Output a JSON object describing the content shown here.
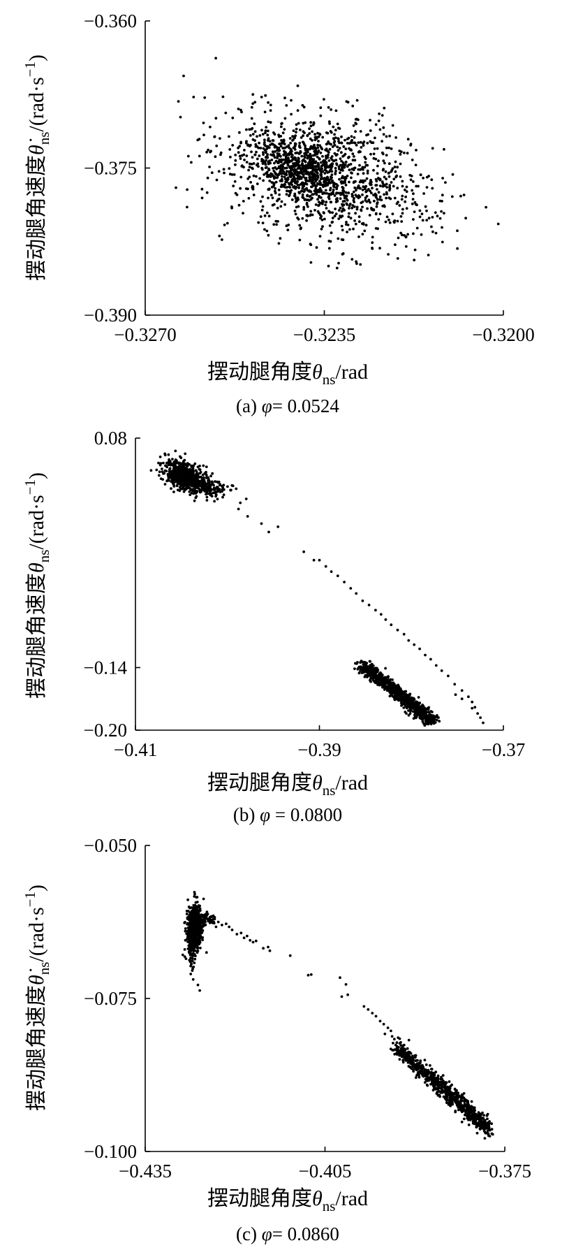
{
  "chart_data": [
    {
      "type": "scatter",
      "panel_label": "(a)",
      "parameter": "φ",
      "parameter_value": "0.0524",
      "caption_parts": [
        "(a) ",
        "φ",
        "= 0.0524"
      ],
      "xlabel_parts": [
        "摆动腿角度",
        "θ",
        "ns",
        "/rad"
      ],
      "ylabel_parts": [
        "摆动腿角速度",
        "θ̇",
        "ns",
        "/(rad·s",
        "−1",
        ")"
      ],
      "xlim": [
        -0.327,
        -0.32
      ],
      "ylim": [
        -0.39,
        -0.36
      ],
      "x_ticks": [
        -0.327,
        -0.3235,
        -0.32
      ],
      "y_ticks": [
        -0.39,
        -0.375,
        -0.36
      ],
      "x_tick_labels": [
        "−0.3270",
        "−0.3235",
        "−0.3200"
      ],
      "y_tick_labels": [
        "−0.390",
        "−0.375",
        "−0.360"
      ],
      "grid": false,
      "legend": "none",
      "marker_color": "#000000",
      "clusters": [
        {
          "center": [
            -0.32345,
            -0.3757
          ],
          "spread": [
            0.00105,
            0.0033
          ],
          "corr": -0.35,
          "n": 1200
        },
        {
          "center": [
            -0.32395,
            -0.3753
          ],
          "spread": [
            0.00045,
            0.0015
          ],
          "corr": -0.4,
          "n": 450
        }
      ],
      "x_clip": [
        -0.3265,
        -0.32
      ],
      "y_clip": [
        -0.3852,
        -0.3639
      ],
      "points": [
        [
          -0.32625,
          -0.3656
        ],
        [
          -0.32635,
          -0.3682
        ],
        [
          -0.3264,
          -0.377
        ],
        [
          -0.32618,
          -0.3772
        ],
        [
          -0.32562,
          -0.3638
        ],
        [
          -0.32586,
          -0.3704
        ],
        [
          -0.32465,
          -0.3676
        ],
        [
          -0.3201,
          -0.3807
        ],
        [
          -0.32034,
          -0.379
        ],
        [
          -0.3209,
          -0.3814
        ],
        [
          -0.32138,
          -0.3815
        ],
        [
          -0.3219,
          -0.383
        ],
        [
          -0.32225,
          -0.3838
        ],
        [
          -0.32322,
          -0.3847
        ],
        [
          -0.32325,
          -0.3852
        ],
        [
          -0.32365,
          -0.3831
        ],
        [
          -0.32545,
          -0.3808
        ],
        [
          -0.3247,
          -0.3806
        ]
      ]
    },
    {
      "type": "scatter",
      "panel_label": "(b)",
      "parameter": "φ",
      "parameter_value": "0.0800",
      "caption_parts": [
        "(b) ",
        "φ",
        " = 0.0800"
      ],
      "xlabel_parts": [
        "摆动腿角度",
        "θ",
        "ns",
        "/rad"
      ],
      "ylabel_parts": [
        "摆动腿角速度",
        "θ",
        "ns",
        "/(rad·s",
        "−1",
        ")"
      ],
      "xlim": [
        -0.41,
        -0.37
      ],
      "ylim": [
        -0.2,
        0.08
      ],
      "x_ticks": [
        -0.41,
        -0.39,
        -0.37
      ],
      "y_ticks": [
        -0.2,
        -0.14,
        0.08
      ],
      "x_tick_labels": [
        "−0.41",
        "−0.39",
        "−0.37"
      ],
      "y_tick_labels": [
        "−0.20",
        "−0.14",
        "0.08"
      ],
      "grid": false,
      "legend": "none",
      "marker_color": "#000000",
      "clusters": [
        {
          "center": [
            -0.4045,
            0.043
          ],
          "spread": [
            0.0011,
            0.0075
          ],
          "corr": -0.45,
          "n": 650
        },
        {
          "center": [
            -0.4018,
            0.032
          ],
          "spread": [
            0.0012,
            0.0045
          ],
          "corr": -0.3,
          "n": 120
        },
        {
          "line": [
            [
              -0.3855,
              -0.136
            ],
            [
              -0.3777,
              -0.192
            ]
          ],
          "spread": [
            0.00045,
            0.0022
          ],
          "n": 900
        }
      ],
      "points": [
        [
          -0.4083,
          0.049
        ],
        [
          -0.4073,
          0.062
        ],
        [
          -0.4068,
          0.065
        ],
        [
          -0.3986,
          0.018
        ],
        [
          -0.3988,
          0.012
        ],
        [
          -0.3978,
          0.005
        ],
        [
          -0.3963,
          -0.002
        ],
        [
          -0.3955,
          -0.01
        ],
        [
          -0.3945,
          -0.005
        ],
        [
          -0.3917,
          -0.029
        ],
        [
          -0.3906,
          -0.037
        ],
        [
          -0.39,
          -0.037
        ],
        [
          -0.3893,
          -0.043
        ],
        [
          -0.3887,
          -0.048
        ],
        [
          -0.388,
          -0.052
        ],
        [
          -0.3873,
          -0.058
        ],
        [
          -0.3866,
          -0.064
        ],
        [
          -0.386,
          -0.069
        ],
        [
          -0.3853,
          -0.076
        ],
        [
          -0.3846,
          -0.08
        ],
        [
          -0.3839,
          -0.085
        ],
        [
          -0.3833,
          -0.089
        ],
        [
          -0.3828,
          -0.094
        ],
        [
          -0.3822,
          -0.099
        ],
        [
          -0.3815,
          -0.104
        ],
        [
          -0.3808,
          -0.108
        ],
        [
          -0.3803,
          -0.114
        ],
        [
          -0.3797,
          -0.118
        ],
        [
          -0.3791,
          -0.122
        ],
        [
          -0.3785,
          -0.128
        ],
        [
          -0.3779,
          -0.132
        ],
        [
          -0.3773,
          -0.138
        ],
        [
          -0.3767,
          -0.143
        ],
        [
          -0.376,
          -0.148
        ],
        [
          -0.3753,
          -0.156
        ],
        [
          -0.3745,
          -0.162
        ],
        [
          -0.3738,
          -0.168
        ],
        [
          -0.3734,
          -0.173
        ],
        [
          -0.3731,
          -0.178
        ],
        [
          -0.3728,
          -0.184
        ],
        [
          -0.3725,
          -0.188
        ],
        [
          -0.3722,
          -0.193
        ],
        [
          -0.3734,
          -0.179
        ],
        [
          -0.3745,
          -0.17
        ],
        [
          -0.3752,
          -0.166
        ]
      ]
    },
    {
      "type": "scatter",
      "panel_label": "(c)",
      "parameter": "φ",
      "parameter_value": "0.0860",
      "caption_parts": [
        "(c) ",
        "φ",
        "= 0.0860"
      ],
      "xlabel_parts": [
        "摆动腿角度",
        "θ",
        "ns",
        "/rad"
      ],
      "ylabel_parts": [
        "摆动腿角速度",
        "θ̇",
        "ns",
        "/(rad·s",
        "−1",
        ")"
      ],
      "xlim": [
        -0.435,
        -0.375
      ],
      "ylim": [
        -0.1,
        -0.05
      ],
      "x_ticks": [
        -0.435,
        -0.405,
        -0.375
      ],
      "y_ticks": [
        -0.1,
        -0.075,
        -0.05
      ],
      "x_tick_labels": [
        "−0.435",
        "−0.405",
        "−0.375"
      ],
      "y_tick_labels": [
        "−0.100",
        "−0.075",
        "−0.050"
      ],
      "grid": false,
      "legend": "none",
      "marker_color": "#000000",
      "clusters": [
        {
          "center": [
            -0.4267,
            -0.0636
          ],
          "spread": [
            0.0006,
            0.0019
          ],
          "corr": 0.1,
          "n": 650
        },
        {
          "center": [
            -0.4272,
            -0.0665
          ],
          "spread": [
            0.0003,
            0.0017
          ],
          "corr": 0.0,
          "n": 60
        },
        {
          "center": [
            -0.4248,
            -0.0621
          ],
          "spread": [
            0.0009,
            0.0006
          ],
          "corr": -0.2,
          "n": 60
        },
        {
          "line": [
            [
              -0.3935,
              -0.0825
            ],
            [
              -0.3775,
              -0.0965
            ]
          ],
          "spread": [
            0.0006,
            0.0006
          ],
          "n": 800
        }
      ],
      "points": [
        [
          -0.4235,
          -0.062
        ],
        [
          -0.4228,
          -0.0625
        ],
        [
          -0.4222,
          -0.063
        ],
        [
          -0.4215,
          -0.0628
        ],
        [
          -0.421,
          -0.0633
        ],
        [
          -0.4205,
          -0.0638
        ],
        [
          -0.4197,
          -0.0645
        ],
        [
          -0.419,
          -0.0643
        ],
        [
          -0.4185,
          -0.0651
        ],
        [
          -0.418,
          -0.0648
        ],
        [
          -0.4175,
          -0.0655
        ],
        [
          -0.417,
          -0.0658
        ],
        [
          -0.4165,
          -0.0656
        ],
        [
          -0.4153,
          -0.0668
        ],
        [
          -0.4145,
          -0.0666
        ],
        [
          -0.4142,
          -0.0672
        ],
        [
          -0.4108,
          -0.068
        ],
        [
          -0.4078,
          -0.0712
        ],
        [
          -0.4073,
          -0.0711
        ],
        [
          -0.4025,
          -0.0716
        ],
        [
          -0.4015,
          -0.0727
        ],
        [
          -0.4022,
          -0.0747
        ],
        [
          -0.4012,
          -0.0744
        ],
        [
          -0.3985,
          -0.0763
        ],
        [
          -0.3978,
          -0.0768
        ],
        [
          -0.3971,
          -0.0774
        ],
        [
          -0.3965,
          -0.0779
        ],
        [
          -0.3958,
          -0.0787
        ],
        [
          -0.3952,
          -0.0792
        ],
        [
          -0.3945,
          -0.0798
        ],
        [
          -0.394,
          -0.0803
        ],
        [
          -0.395,
          -0.0808
        ],
        [
          -0.3938,
          -0.0812
        ],
        [
          -0.3928,
          -0.0814
        ],
        [
          -0.3918,
          -0.0826
        ],
        [
          -0.391,
          -0.0818
        ],
        [
          -0.3775,
          -0.0975
        ],
        [
          -0.377,
          -0.0972
        ],
        [
          -0.3782,
          -0.097
        ],
        [
          -0.379,
          -0.0962
        ],
        [
          -0.4259,
          -0.0737
        ],
        [
          -0.4262,
          -0.0728
        ],
        [
          -0.427,
          -0.0719
        ],
        [
          -0.4274,
          -0.071
        ],
        [
          -0.4275,
          -0.069
        ],
        [
          -0.4283,
          -0.0655
        ],
        [
          -0.4284,
          -0.067
        ],
        [
          -0.4282,
          -0.0685
        ]
      ]
    }
  ]
}
